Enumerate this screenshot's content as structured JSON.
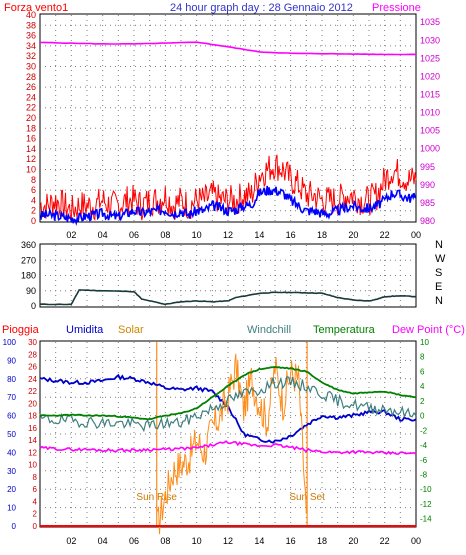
{
  "header": {
    "left_label": "Forza vento1",
    "title": "24 hour graph day : 28 Gennaio 2012",
    "right_label": "Pressione"
  },
  "colors": {
    "frame": "#000000",
    "grid": "#7f7f7f",
    "wind_gust": "#ff0000",
    "wind_avg": "#0000ff",
    "pressure": "#ff00ff",
    "direction": "#1a3a3a",
    "pioggia": "#ff0000",
    "umidita": "#0000cc",
    "solar": "#ff8c1a",
    "windchill": "#3f7f7f",
    "temperatura": "#008000",
    "dewpoint": "#ff00ff",
    "left_axis_blue": "#0000cc",
    "right_axis_green": "#008000",
    "right_axis_magenta": "#cc00cc"
  },
  "x_ticks": [
    "02",
    "04",
    "06",
    "08",
    "10",
    "12",
    "14",
    "16",
    "18",
    "20",
    "22",
    "00"
  ],
  "chart_data": [
    {
      "type": "line",
      "panel": "wind_pressure",
      "x_range": [
        0,
        24
      ],
      "left_axis": {
        "ticks": [
          0,
          2,
          4,
          6,
          8,
          10,
          12,
          14,
          16,
          18,
          20,
          22,
          24,
          26,
          28,
          30,
          32,
          34,
          36,
          38,
          40
        ],
        "ylim": [
          0,
          40
        ]
      },
      "right_axis": {
        "ticks": [
          980,
          985,
          990,
          995,
          1000,
          1005,
          1010,
          1015,
          1020,
          1025,
          1030,
          1035
        ],
        "ylim": [
          980,
          1037
        ]
      },
      "series": [
        {
          "name": "Forza vento1",
          "axis": "left",
          "x": [
            0,
            0.5,
            1,
            1.5,
            2,
            2.5,
            3,
            3.5,
            4,
            4.5,
            5,
            5.5,
            6,
            6.5,
            7,
            7.5,
            8,
            8.5,
            9,
            9.5,
            10,
            10.5,
            11,
            11.5,
            12,
            12.5,
            13,
            13.5,
            14,
            14.5,
            15,
            15.5,
            16,
            16.5,
            17,
            17.5,
            18,
            18.5,
            19,
            19.5,
            20,
            20.5,
            21,
            21.5,
            22,
            22.5,
            23,
            23.5,
            24
          ],
          "values": [
            3,
            3,
            4,
            3,
            2,
            3,
            3,
            3,
            4,
            3,
            3,
            4,
            4,
            3,
            4,
            4,
            5,
            3,
            4,
            3,
            4,
            4,
            5,
            4,
            4,
            4,
            5,
            5,
            9,
            10,
            11,
            10,
            8,
            7,
            5,
            5,
            4,
            4,
            4,
            5,
            5,
            4,
            4,
            5,
            8,
            10,
            9,
            8,
            8
          ]
        },
        {
          "name": "",
          "axis": "left",
          "x": [
            0,
            0.5,
            1,
            1.5,
            2,
            2.5,
            3,
            3.5,
            4,
            4.5,
            5,
            5.5,
            6,
            6.5,
            7,
            7.5,
            8,
            8.5,
            9,
            9.5,
            10,
            10.5,
            11,
            11.5,
            12,
            12.5,
            13,
            13.5,
            14,
            14.5,
            15,
            15.5,
            16,
            16.5,
            17,
            17.5,
            18,
            18.5,
            19,
            19.5,
            20,
            20.5,
            21,
            21.5,
            22,
            22.5,
            23,
            23.5,
            24
          ],
          "values": [
            1,
            1.2,
            1,
            0.8,
            0.5,
            0.6,
            1,
            1.2,
            1.5,
            1,
            0.8,
            1.5,
            2,
            1.6,
            1.8,
            2,
            2.2,
            1.5,
            2,
            1.2,
            2,
            2,
            3,
            2.6,
            2,
            2.2,
            3,
            3.2,
            5.5,
            6,
            6,
            5.5,
            4,
            3,
            2,
            2,
            1.5,
            1.5,
            2,
            2.5,
            3,
            2.5,
            2.5,
            3,
            4,
            5.5,
            5,
            4.5,
            4.5
          ]
        },
        {
          "name": "Pressione",
          "axis": "right",
          "x": [
            0,
            2,
            4,
            6,
            8,
            10,
            12,
            14,
            16,
            18,
            20,
            22,
            24
          ],
          "values": [
            1029.4,
            1029.2,
            1029.0,
            1029.0,
            1029.2,
            1029.5,
            1028.2,
            1026.8,
            1026.4,
            1026.3,
            1026.2,
            1026.1,
            1026.1
          ]
        }
      ]
    },
    {
      "type": "line",
      "panel": "wind_direction",
      "x_range": [
        0,
        24
      ],
      "y_axis": {
        "ticks": [
          0,
          90,
          180,
          270,
          360
        ],
        "ylim": [
          0,
          360
        ]
      },
      "right_labels": [
        "N",
        "W",
        "S",
        "E",
        "N"
      ],
      "series": [
        {
          "name": "",
          "x": [
            0,
            2,
            2.5,
            4,
            6,
            6.5,
            7.5,
            8,
            9,
            10,
            11,
            12,
            12.5,
            14,
            15,
            16,
            17,
            18,
            19,
            20,
            21,
            21.5,
            22,
            23,
            24
          ],
          "values": [
            10,
            10,
            95,
            90,
            85,
            40,
            20,
            10,
            25,
            30,
            25,
            30,
            50,
            75,
            80,
            80,
            78,
            75,
            50,
            35,
            30,
            40,
            55,
            60,
            55
          ]
        }
      ]
    },
    {
      "type": "line",
      "panel": "weather",
      "x_range": [
        0,
        24
      ],
      "legend": [
        "Pioggia",
        "Umidita",
        "Solar",
        "Windchill",
        "Temperatura",
        "Dew Point (°C)"
      ],
      "left_axis_umidita": {
        "ticks": [
          0,
          10,
          20,
          30,
          40,
          50,
          60,
          70,
          80,
          90,
          100
        ],
        "ylim": [
          0,
          100
        ]
      },
      "left_axis_pioggia": {
        "ticks": [
          0,
          2,
          4,
          6,
          8,
          10,
          12,
          14,
          16,
          18,
          20,
          22,
          24,
          26,
          28,
          30
        ],
        "ylim": [
          0,
          30
        ]
      },
      "right_axis_temperature": {
        "ticks": [
          -14,
          -12,
          -10,
          -8,
          -6,
          -4,
          -2,
          0,
          2,
          4,
          6,
          8,
          10
        ],
        "ylim": [
          -15,
          10
        ]
      },
      "annotations": [
        {
          "label": "Sun Rise",
          "x": 7.45
        },
        {
          "label": "Sun Set",
          "x": 17.05
        }
      ],
      "series": [
        {
          "name": "Pioggia",
          "axis": "pioggia",
          "x": [
            0,
            24
          ],
          "values": [
            0,
            0
          ]
        },
        {
          "name": "Umidita",
          "axis": "umidita",
          "x": [
            0,
            1,
            2,
            3,
            4,
            5,
            6,
            7,
            8,
            9,
            10,
            11,
            12,
            13,
            14,
            15,
            16,
            17,
            18,
            19,
            20,
            21,
            22,
            23,
            24
          ],
          "values": [
            80,
            79,
            78,
            78,
            79,
            81,
            80,
            78,
            75,
            74,
            75,
            73,
            65,
            50,
            47,
            46,
            49,
            55,
            60,
            59,
            60,
            62,
            62,
            58,
            58
          ]
        },
        {
          "name": "Solar",
          "axis": "pioggia",
          "x": [
            7.5,
            8,
            8.5,
            9,
            9.5,
            10,
            10.5,
            11,
            11.5,
            12,
            12.5,
            13,
            13.5,
            14,
            14.5,
            15,
            15.5,
            16,
            16.5,
            17
          ],
          "values": [
            0,
            5,
            9,
            10,
            11,
            14,
            12,
            16,
            18,
            21,
            26,
            19,
            24,
            20,
            17,
            26,
            20,
            25,
            24,
            2
          ]
        },
        {
          "name": "Windchill",
          "axis": "temperature",
          "x": [
            0,
            1,
            2,
            3,
            4,
            5,
            6,
            7,
            8,
            9,
            10,
            11,
            12,
            13,
            14,
            15,
            16,
            17,
            18,
            19,
            20,
            21,
            22,
            23,
            24
          ],
          "values": [
            -0.5,
            -0.6,
            -0.7,
            -0.8,
            -1,
            -1,
            -1.2,
            -1.4,
            -1,
            -1,
            0,
            1,
            2,
            3,
            3.5,
            4.5,
            4.5,
            4,
            3,
            2,
            1.5,
            1,
            1,
            0.5,
            0
          ]
        },
        {
          "name": "Temperatura",
          "axis": "temperature",
          "x": [
            0,
            1,
            2,
            3,
            4,
            5,
            6,
            7,
            8,
            9,
            10,
            11,
            12,
            13,
            14,
            15,
            16,
            17,
            18,
            19,
            20,
            21,
            22,
            23,
            24
          ],
          "values": [
            0,
            0,
            0.1,
            0,
            0,
            -0.1,
            -0.3,
            -0.5,
            0,
            0.3,
            1,
            2.5,
            4,
            5.5,
            6.3,
            6.6,
            6.4,
            6,
            4.5,
            3.5,
            3,
            3.2,
            3.3,
            2.8,
            2.5
          ]
        },
        {
          "name": "Dew Point (°C)",
          "axis": "temperature",
          "x": [
            0,
            1,
            2,
            3,
            4,
            5,
            6,
            7,
            8,
            9,
            10,
            11,
            12,
            13,
            14,
            15,
            16,
            17,
            18,
            19,
            20,
            21,
            22,
            23,
            24
          ],
          "values": [
            -4.4,
            -4.5,
            -4.6,
            -4.6,
            -4.7,
            -4.7,
            -4.7,
            -4.6,
            -4.6,
            -4.5,
            -4.4,
            -4.0,
            -3.6,
            -3.9,
            -4.1,
            -4.0,
            -4.3,
            -4.7,
            -4.9,
            -5.0,
            -4.9,
            -5.0,
            -5.1,
            -5.1,
            -5.2
          ]
        }
      ]
    }
  ]
}
